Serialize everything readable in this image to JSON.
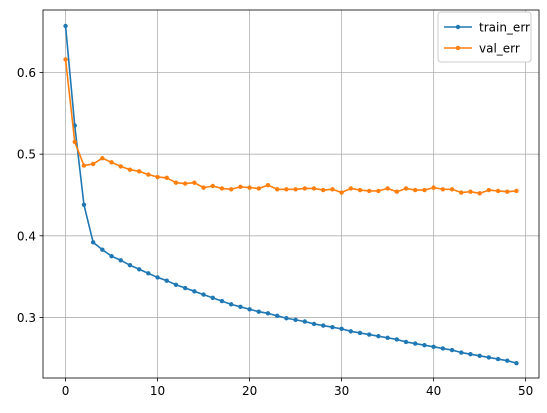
{
  "chart_data": {
    "type": "line",
    "title": "",
    "xlabel": "",
    "ylabel": "",
    "xlim": [
      -2.45,
      51.45
    ],
    "ylim": [
      0.2258,
      0.6766
    ],
    "xticks": [
      0,
      10,
      20,
      30,
      40,
      50
    ],
    "yticks": [
      0.3,
      0.4,
      0.5,
      0.6
    ],
    "xtick_labels": [
      "0",
      "10",
      "20",
      "30",
      "40",
      "50"
    ],
    "ytick_labels": [
      "0.3",
      "0.4",
      "0.5",
      "0.6"
    ],
    "grid": true,
    "legend_position": "top-right",
    "x": [
      0,
      1,
      2,
      3,
      4,
      5,
      6,
      7,
      8,
      9,
      10,
      11,
      12,
      13,
      14,
      15,
      16,
      17,
      18,
      19,
      20,
      21,
      22,
      23,
      24,
      25,
      26,
      27,
      28,
      29,
      30,
      31,
      32,
      33,
      34,
      35,
      36,
      37,
      38,
      39,
      40,
      41,
      42,
      43,
      44,
      45,
      46,
      47,
      48,
      49
    ],
    "series": [
      {
        "name": "train_err",
        "color": "#1f77b4",
        "values": [
          0.657,
          0.535,
          0.438,
          0.392,
          0.383,
          0.375,
          0.37,
          0.364,
          0.359,
          0.354,
          0.349,
          0.345,
          0.34,
          0.336,
          0.332,
          0.328,
          0.324,
          0.32,
          0.316,
          0.313,
          0.31,
          0.307,
          0.305,
          0.302,
          0.299,
          0.297,
          0.295,
          0.292,
          0.29,
          0.288,
          0.286,
          0.283,
          0.281,
          0.279,
          0.277,
          0.275,
          0.273,
          0.27,
          0.268,
          0.266,
          0.264,
          0.262,
          0.26,
          0.257,
          0.255,
          0.253,
          0.251,
          0.249,
          0.247,
          0.244
        ]
      },
      {
        "name": "val_err",
        "color": "#ff7f0e",
        "values": [
          0.616,
          0.515,
          0.486,
          0.488,
          0.495,
          0.49,
          0.485,
          0.481,
          0.479,
          0.475,
          0.472,
          0.471,
          0.465,
          0.464,
          0.465,
          0.459,
          0.461,
          0.458,
          0.457,
          0.46,
          0.459,
          0.458,
          0.462,
          0.457,
          0.457,
          0.457,
          0.458,
          0.458,
          0.456,
          0.457,
          0.453,
          0.458,
          0.456,
          0.455,
          0.455,
          0.458,
          0.454,
          0.458,
          0.456,
          0.456,
          0.459,
          0.457,
          0.457,
          0.453,
          0.454,
          0.452,
          0.456,
          0.455,
          0.454,
          0.455
        ]
      }
    ]
  }
}
